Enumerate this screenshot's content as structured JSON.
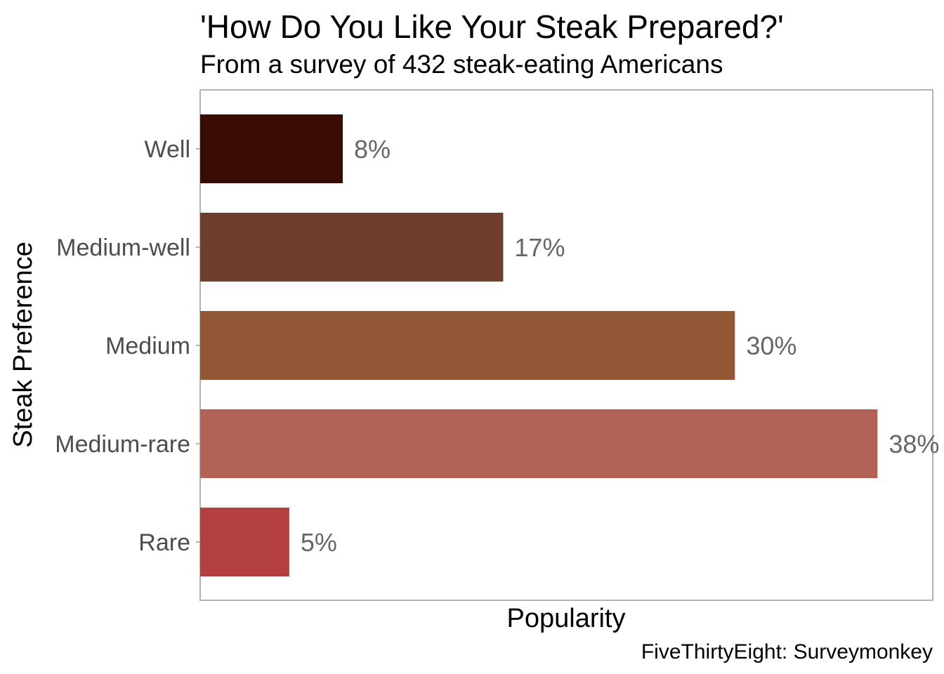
{
  "chart_data": {
    "type": "bar",
    "orientation": "horizontal",
    "title": "'How Do You Like Your Steak Prepared?'",
    "subtitle": "From a survey of 432 steak-eating Americans",
    "xlabel": "Popularity",
    "ylabel": "Steak Preference",
    "caption": "FiveThirtyEight: Surveymonkey",
    "categories": [
      "Well",
      "Medium-well",
      "Medium",
      "Medium-rare",
      "Rare"
    ],
    "values": [
      8,
      17,
      30,
      38,
      5
    ],
    "value_labels": [
      "8%",
      "17%",
      "30%",
      "38%",
      "5%"
    ],
    "colors": [
      "#3a0b02",
      "#6e3f2e",
      "#925734",
      "#b36355",
      "#b43f3f"
    ],
    "xlim": [
      0,
      41.1
    ],
    "grid": false,
    "legend": "none"
  }
}
